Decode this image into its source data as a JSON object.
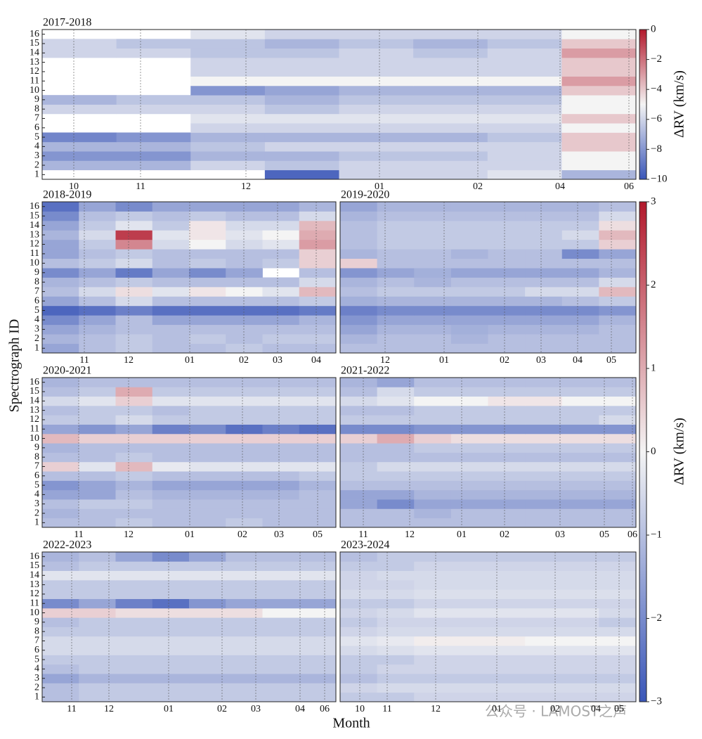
{
  "chart_data": [
    {
      "type": "heatmap",
      "title": "2017-2018",
      "colorbar": 0,
      "months": [
        "10",
        "11",
        "12",
        "01",
        "02",
        "04",
        "06"
      ],
      "yticks": [
        1,
        2,
        3,
        4,
        5,
        6,
        7,
        8,
        9,
        10,
        11,
        12,
        13,
        14,
        15,
        16
      ],
      "rows": [
        [
          null,
          null,
          null,
          -9.5,
          -6,
          -6,
          -5.5,
          -7
        ],
        [
          -7,
          -7,
          -6,
          -6.5,
          -6,
          -6,
          -6,
          -5
        ],
        [
          -8,
          -8,
          -7,
          -7,
          -6.5,
          -6.5,
          -6,
          -5
        ],
        [
          -7,
          -7,
          -6.5,
          -6,
          -6,
          -6,
          -6,
          -4
        ],
        [
          -8.5,
          -8,
          -7,
          -7,
          -7,
          -7,
          -6.5,
          -4
        ],
        [
          null,
          null,
          -6,
          -6,
          -6,
          -6,
          -6,
          -5
        ],
        [
          null,
          null,
          -5.5,
          -5.5,
          -5.5,
          -5.5,
          -5.5,
          -4
        ],
        [
          -6,
          -6,
          -6,
          -6.5,
          -6,
          -6,
          -6,
          -5
        ],
        [
          -7,
          -6.5,
          -6.5,
          -7,
          -6.5,
          -6.5,
          -6.5,
          -5
        ],
        [
          null,
          null,
          -8,
          -7.5,
          -7,
          -7,
          -7,
          -4
        ],
        [
          null,
          null,
          -5,
          -5,
          -5,
          -5,
          -5,
          -3
        ],
        [
          null,
          null,
          -6,
          -6,
          -6,
          -6,
          -6,
          -4
        ],
        [
          null,
          null,
          -6,
          -6,
          -6,
          -6,
          -6,
          -4
        ],
        [
          -6,
          -6,
          -6.5,
          -6.5,
          -6,
          -6.5,
          -6,
          -3
        ],
        [
          -6,
          -6.5,
          -6.5,
          -7,
          -6.5,
          -7,
          -6.5,
          -4
        ],
        [
          null,
          null,
          -5.5,
          -6,
          -6,
          -6,
          -6,
          -5
        ]
      ]
    },
    {
      "type": "heatmap",
      "title": "2018-2019",
      "colorbar": 1,
      "months": [
        "11",
        "12",
        "01",
        "02",
        "03",
        "04"
      ],
      "yticks": [
        1,
        2,
        3,
        4,
        5,
        6,
        7,
        8,
        9,
        10,
        11,
        12,
        13,
        14,
        15,
        16
      ],
      "rows": [
        [
          -1.5,
          -1,
          -0.8,
          -1,
          -1,
          -0.8,
          -1,
          -1
        ],
        [
          -1.2,
          -1,
          -0.8,
          -1,
          -0.8,
          -1,
          -0.8,
          -0.8
        ],
        [
          -1.5,
          -1.2,
          -1,
          -1,
          -1,
          -1,
          -1,
          -1
        ],
        [
          -2,
          -1.5,
          -1,
          -1.5,
          -1.5,
          -1.5,
          -1.5,
          -1.2
        ],
        [
          -2.7,
          -2.5,
          -2.2,
          -2.5,
          -2.5,
          -2.5,
          -2.5,
          -2.3
        ],
        [
          -1.5,
          -1,
          -0.5,
          -1,
          -1,
          -1,
          -1,
          -0.8
        ],
        [
          -1,
          -0.5,
          0.3,
          -0.3,
          0.2,
          0,
          -0.3,
          0.8
        ],
        [
          -1.2,
          -1,
          -0.8,
          -1,
          -1,
          -1,
          -1,
          -0.5
        ],
        [
          -2,
          -1.5,
          -2.3,
          -1.5,
          -2,
          -1.5,
          null,
          -1
        ],
        [
          -1,
          -0.8,
          -0.5,
          -1,
          -0.8,
          -1,
          -0.8,
          0.5
        ],
        [
          -1.5,
          -1,
          -0.8,
          -1,
          -1,
          -1,
          -1,
          0.5
        ],
        [
          -1.5,
          -0.8,
          1.5,
          -0.5,
          0,
          -0.5,
          -0.3,
          1.2
        ],
        [
          -1.2,
          -0.5,
          2.5,
          -0.3,
          0.2,
          -0.3,
          0,
          1
        ],
        [
          -1.5,
          -0.8,
          -0.3,
          -0.8,
          0.2,
          -0.5,
          -0.5,
          0.8
        ],
        [
          -2,
          -1,
          -0.8,
          -1,
          -0.8,
          -1,
          -1,
          -0.5
        ],
        [
          -2.5,
          -1.5,
          -2,
          -1.5,
          -1.5,
          -1.5,
          -1.5,
          -1.2
        ]
      ]
    },
    {
      "type": "heatmap",
      "title": "2019-2020",
      "colorbar": 1,
      "months": [
        "12",
        "01",
        "02",
        "03",
        "04",
        "05"
      ],
      "rows": [
        [
          -1,
          -1,
          -1,
          -1,
          -1,
          -1,
          -1,
          -1
        ],
        [
          -1.2,
          -1,
          -1,
          -1.2,
          -1,
          -1,
          -1,
          -1
        ],
        [
          -1.5,
          -1.2,
          -1.2,
          -1.3,
          -1.2,
          -1.2,
          -1.2,
          -1
        ],
        [
          -1.8,
          -1.5,
          -1.5,
          -1.5,
          -1.5,
          -1.5,
          -1.5,
          -1.2
        ],
        [
          -2.2,
          -2,
          -2,
          -2,
          -2,
          -2,
          -2,
          -1.8
        ],
        [
          -1.3,
          -1.2,
          -1.2,
          -1.2,
          -1.2,
          -1.2,
          -1,
          -0.8
        ],
        [
          -1,
          -0.8,
          -0.8,
          -0.8,
          -0.8,
          -0.5,
          -0.5,
          0.8
        ],
        [
          -1.2,
          -1,
          -1.2,
          -1,
          -1,
          -1,
          -1,
          -0.5
        ],
        [
          -1.8,
          -1.5,
          -1.3,
          -1.5,
          -1.5,
          -1.5,
          -1.5,
          -1.2
        ],
        [
          0.5,
          -1,
          -1,
          -1,
          -1,
          -1,
          -1,
          -1
        ],
        [
          -1.2,
          -1,
          -1,
          -1.2,
          -1,
          -1,
          -2,
          -1.5
        ],
        [
          -1,
          -0.8,
          -0.8,
          -0.8,
          -0.8,
          -0.8,
          -0.8,
          0.5
        ],
        [
          -1,
          -0.8,
          -0.8,
          -0.8,
          -0.8,
          -0.8,
          -0.5,
          0.8
        ],
        [
          -1,
          -0.8,
          -0.8,
          -0.8,
          -0.8,
          -0.8,
          -0.8,
          0.3
        ],
        [
          -1.2,
          -1,
          -1,
          -1,
          -1,
          -1,
          -1,
          -0.5
        ],
        [
          -1.5,
          -1.2,
          -1.2,
          -1.2,
          -1.2,
          -1.2,
          -1.2,
          -1
        ]
      ]
    },
    {
      "type": "heatmap",
      "title": "2020-2021",
      "colorbar": 1,
      "months": [
        "11",
        "12",
        "01",
        "02",
        "03",
        "05"
      ],
      "yticks": [
        1,
        2,
        3,
        4,
        5,
        6,
        7,
        8,
        9,
        10,
        11,
        12,
        13,
        14,
        15,
        16
      ],
      "rows": [
        [
          -1,
          -1,
          -0.8,
          -1,
          -1,
          -0.8,
          -1,
          -1
        ],
        [
          -1.2,
          -1,
          -1,
          -1,
          -1,
          -1,
          -1,
          -1
        ],
        [
          -1,
          -0.8,
          -0.8,
          -1,
          -1,
          -1,
          -1,
          -1
        ],
        [
          -1.5,
          -1.5,
          -1,
          -1.2,
          -1.2,
          -1.2,
          -1.2,
          -1
        ],
        [
          -1.8,
          -1.5,
          -1.2,
          -1.5,
          -1.5,
          -1.5,
          -1.5,
          -1.2
        ],
        [
          -1,
          -1,
          -0.8,
          -1,
          -1,
          -1,
          -1,
          -0.8
        ],
        [
          0.5,
          -0.3,
          0.8,
          -0.2,
          -0.3,
          -0.3,
          -0.3,
          -0.3
        ],
        [
          -1,
          -1,
          -0.8,
          -1,
          -1,
          -1,
          -1,
          -1
        ],
        [
          -1.2,
          -1,
          -1,
          -1,
          -1,
          -1,
          -1,
          -1
        ],
        [
          0.8,
          0.5,
          0.5,
          0.5,
          0.5,
          0.5,
          0.5,
          0.5
        ],
        [
          -1.5,
          -1.8,
          -1.5,
          -2.2,
          -2,
          -2.5,
          -2.2,
          -2.5
        ],
        [
          -0.8,
          -0.8,
          -0.5,
          -0.8,
          -0.8,
          -0.8,
          -0.8,
          -0.8
        ],
        [
          -1,
          -0.8,
          -0.8,
          -1,
          -0.8,
          -0.8,
          -0.8,
          -0.8
        ],
        [
          -0.5,
          -0.3,
          0.5,
          -0.3,
          -0.3,
          -0.3,
          -0.3,
          -0.3
        ],
        [
          -1,
          -0.8,
          1,
          -0.8,
          -0.8,
          -0.8,
          -0.8,
          -0.8
        ],
        [
          -1.2,
          -1,
          -1,
          -1,
          -1,
          -1,
          -1,
          -1
        ]
      ]
    },
    {
      "type": "heatmap",
      "title": "2021-2022",
      "colorbar": 1,
      "months": [
        "11",
        "12",
        "01",
        "02",
        "03",
        "05",
        "06"
      ],
      "rows": [
        [
          -1,
          -1,
          -1,
          -1,
          -1,
          -1,
          -1,
          -1
        ],
        [
          -1,
          -1,
          -1.2,
          -1,
          -1,
          -1,
          -1,
          -1
        ],
        [
          -1.5,
          -2,
          -1.5,
          -1.5,
          -1.5,
          -1.5,
          -1.5,
          -1.5
        ],
        [
          -1.5,
          -1.5,
          -1.2,
          -1.2,
          -1.2,
          -1.2,
          -1.2,
          -1.2
        ],
        [
          -1,
          -1,
          -1,
          -1,
          -1,
          -1,
          -1,
          -1
        ],
        [
          -0.8,
          -0.8,
          -0.8,
          -0.8,
          -0.8,
          -0.8,
          -0.8,
          -0.8
        ],
        [
          -0.8,
          -0.5,
          -0.5,
          -0.5,
          -0.5,
          -0.5,
          -0.5,
          -0.5
        ],
        [
          -1,
          -1,
          -1,
          -1,
          -1,
          -1,
          -1,
          -1
        ],
        [
          -1,
          -1,
          -0.8,
          -0.8,
          -0.8,
          -0.8,
          -0.8,
          -0.8
        ],
        [
          0.5,
          1,
          0.5,
          0.3,
          0.3,
          0.3,
          0.3,
          0.3
        ],
        [
          -2,
          -2,
          -1.8,
          -1.8,
          -1.8,
          -1.8,
          -1.8,
          -1.8
        ],
        [
          -0.8,
          -0.8,
          -0.8,
          -0.8,
          -0.8,
          -0.8,
          -0.8,
          -0.5
        ],
        [
          -1,
          -1,
          -0.8,
          -0.8,
          -0.8,
          -0.8,
          -0.8,
          -0.8
        ],
        [
          -0.5,
          -0.3,
          0,
          0,
          0.2,
          0.2,
          0,
          0
        ],
        [
          -1,
          -0.5,
          -0.8,
          -0.8,
          -0.8,
          -0.8,
          -0.8,
          -0.8
        ],
        [
          -1.2,
          -1.5,
          -1,
          -1,
          -1,
          -1,
          -1,
          -1
        ]
      ]
    },
    {
      "type": "heatmap",
      "title": "2022-2023",
      "colorbar": 1,
      "months": [
        "11",
        "12",
        "01",
        "02",
        "03",
        "04",
        "06"
      ],
      "yticks": [
        1,
        2,
        3,
        4,
        5,
        6,
        7,
        8,
        9,
        10,
        11,
        12,
        13,
        14,
        15,
        16
      ],
      "rows": [
        [
          -1,
          -0.8,
          -0.8,
          -0.8,
          -0.8,
          -0.8,
          -0.8,
          -0.8
        ],
        [
          -1,
          -0.8,
          -0.8,
          -0.8,
          -0.8,
          -0.8,
          -0.8,
          -0.8
        ],
        [
          -1.5,
          -1.2,
          -1.2,
          -1.2,
          -1.2,
          -1.2,
          -1.2,
          -1.2
        ],
        [
          -1,
          -0.8,
          -0.8,
          -0.8,
          -0.8,
          -0.8,
          -0.8,
          -0.8
        ],
        [
          -0.8,
          -0.8,
          -0.8,
          -0.8,
          -0.8,
          -0.8,
          -0.8,
          -0.8
        ],
        [
          -0.5,
          -0.5,
          -0.5,
          -0.5,
          -0.5,
          -0.5,
          -0.5,
          -0.5
        ],
        [
          -0.5,
          -0.5,
          -0.5,
          -0.5,
          -0.5,
          -0.5,
          -0.5,
          -0.5
        ],
        [
          -0.8,
          -0.8,
          -0.8,
          -0.8,
          -0.8,
          -0.8,
          -0.8,
          -0.8
        ],
        [
          -1,
          -0.8,
          -0.8,
          -0.8,
          -0.8,
          -0.8,
          -0.8,
          -0.8
        ],
        [
          0.5,
          0.5,
          0.3,
          0.3,
          0.3,
          0.3,
          0,
          0
        ],
        [
          -2,
          -1.5,
          -2.2,
          -2.5,
          -1.8,
          -1.5,
          -1.5,
          -1.5
        ],
        [
          -0.8,
          -0.8,
          -0.8,
          -0.8,
          -0.8,
          -0.8,
          -0.8,
          -0.8
        ],
        [
          -0.8,
          -0.8,
          -0.8,
          -0.8,
          -0.8,
          -0.8,
          -0.8,
          -0.8
        ],
        [
          -0.3,
          -0.3,
          -0.3,
          -0.3,
          -0.3,
          -0.3,
          -0.3,
          -0.3
        ],
        [
          -1,
          -0.8,
          -0.8,
          -0.8,
          -0.8,
          -0.8,
          -0.8,
          -0.8
        ],
        [
          -1.2,
          -1,
          -1.5,
          -2,
          -1.5,
          -1,
          -1,
          -1
        ]
      ]
    },
    {
      "type": "heatmap",
      "title": "2023-2024",
      "colorbar": 1,
      "months": [
        "10",
        "11",
        "12",
        "01",
        "02",
        "04",
        "05"
      ],
      "rows": [
        [
          -0.8,
          -0.8,
          -0.6,
          -0.6,
          -0.6,
          -0.6,
          -0.6,
          -0.6
        ],
        [
          -0.6,
          -0.5,
          -0.5,
          -0.5,
          -0.5,
          -0.5,
          -0.5,
          -0.5
        ],
        [
          -1,
          -0.8,
          -0.8,
          -0.8,
          -0.8,
          -0.8,
          -0.8,
          -0.8
        ],
        [
          -0.8,
          -0.6,
          -0.6,
          -0.6,
          -0.6,
          -0.6,
          -0.6,
          -0.6
        ],
        [
          -0.8,
          -0.8,
          -0.6,
          -0.6,
          -0.6,
          -0.6,
          -0.6,
          -0.6
        ],
        [
          -0.5,
          -0.4,
          -0.3,
          -0.3,
          -0.3,
          -0.3,
          -0.3,
          -0.3
        ],
        [
          -0.3,
          -0.2,
          0.1,
          0.1,
          0.1,
          0,
          0,
          0
        ],
        [
          -0.6,
          -0.5,
          -0.5,
          -0.5,
          -0.5,
          -0.5,
          -0.5,
          -0.5
        ],
        [
          -0.8,
          -0.6,
          -0.6,
          -0.6,
          -0.6,
          -0.6,
          -0.6,
          -0.8
        ],
        [
          -0.6,
          -0.5,
          -0.3,
          -0.3,
          -0.3,
          -0.3,
          -0.3,
          -0.5
        ],
        [
          -0.8,
          -0.8,
          -0.6,
          -0.6,
          -0.6,
          -0.6,
          -0.6,
          -0.6
        ],
        [
          -0.5,
          -0.5,
          -0.4,
          -0.4,
          -0.4,
          -0.4,
          -0.4,
          -0.4
        ],
        [
          -0.6,
          -0.6,
          -0.5,
          -0.5,
          -0.5,
          -0.5,
          -0.5,
          -0.5
        ],
        [
          -0.6,
          -0.5,
          -0.5,
          -0.5,
          -0.5,
          -0.5,
          -0.5,
          -0.5
        ],
        [
          -0.8,
          -0.8,
          -0.6,
          -0.6,
          -0.6,
          -0.6,
          -0.6,
          -0.6
        ],
        [
          -1,
          -0.8,
          -0.8,
          -0.8,
          -0.8,
          -0.8,
          -0.8,
          -0.8
        ]
      ]
    }
  ],
  "colorbars": [
    {
      "label": "ΔRV (km/s)",
      "lim": [
        -10,
        0
      ],
      "ticks": [
        0,
        {
          "value": -2,
          "label": "−2"
        },
        {
          "value": -4,
          "label": "−4"
        },
        {
          "value": -6,
          "label": "−6"
        },
        {
          "value": -8,
          "label": "−8"
        },
        {
          "value": -10,
          "label": "−10"
        }
      ]
    },
    {
      "label": "ΔRV (km/s)",
      "lim": [
        -3,
        3
      ],
      "ticks": [
        3,
        2,
        1,
        0,
        {
          "value": -1,
          "label": "−1"
        },
        {
          "value": -2,
          "label": "−2"
        },
        {
          "value": -3,
          "label": "−3"
        }
      ]
    }
  ],
  "colormap": [
    "#3a56b8",
    "#f4f4f4",
    "#b2182b"
  ],
  "ylabel": "Spectrograph ID",
  "xlabel": "Month",
  "watermark": "公众号 · LAMOST之声"
}
